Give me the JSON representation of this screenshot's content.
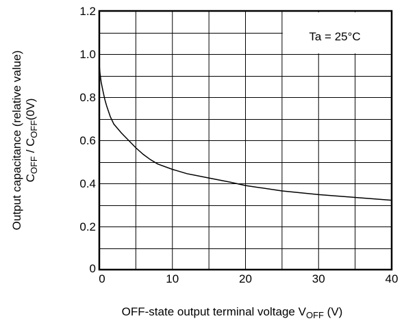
{
  "chart_data": {
    "type": "line",
    "xlabel": {
      "text": "OFF-state output terminal voltage V",
      "sub": "OFF",
      "tail": " (V)"
    },
    "ylabel": {
      "line1": "Output capacitance (relative value)",
      "line2": [
        {
          "t": "C",
          "sub": false
        },
        {
          "t": "OFF",
          "sub": true
        },
        {
          "t": " / C",
          "sub": false
        },
        {
          "t": "OFF",
          "sub": true
        },
        {
          "t": "(0V)",
          "sub": false
        }
      ]
    },
    "annotation": "Ta = 25°C",
    "xlim": [
      0,
      40
    ],
    "ylim": [
      0,
      1.2
    ],
    "x_ticks": [
      0,
      10,
      20,
      30,
      40
    ],
    "x_tick_labels": [
      "0",
      "10",
      "20",
      "30",
      "40"
    ],
    "y_ticks": [
      0,
      0.2,
      0.4,
      0.6,
      0.8,
      1.0,
      1.2
    ],
    "y_tick_labels": [
      "0",
      "0.2",
      "0.4",
      "0.6",
      "0.8",
      "1.0",
      "1.2"
    ],
    "grid": true,
    "x_grid_step": 5,
    "y_grid_step": 0.1,
    "series": [
      {
        "x": [
          0,
          0.1,
          0.25,
          0.5,
          0.75,
          1,
          1.5,
          2,
          2.5,
          3,
          4,
          5,
          6,
          7,
          8,
          10,
          12,
          15,
          18,
          20,
          25,
          30,
          35,
          40
        ],
        "y": [
          0.95,
          0.91,
          0.87,
          0.83,
          0.79,
          0.76,
          0.71,
          0.675,
          0.655,
          0.635,
          0.6,
          0.565,
          0.535,
          0.51,
          0.49,
          0.465,
          0.445,
          0.425,
          0.405,
          0.39,
          0.365,
          0.348,
          0.335,
          0.322
        ]
      }
    ]
  }
}
